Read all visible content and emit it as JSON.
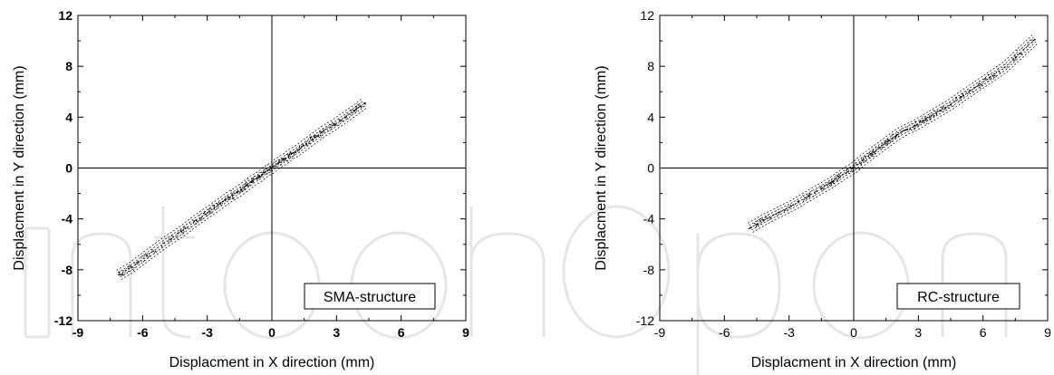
{
  "chart_data": [
    {
      "type": "scatter",
      "title": "",
      "xlabel": "Displacment in X direction (mm)",
      "ylabel": "Displacment in Y direction (mm)",
      "xlim": [
        -9,
        9
      ],
      "ylim": [
        -12,
        12
      ],
      "xticks": [
        "-9",
        "-6",
        "-3",
        "0",
        "3",
        "6",
        "9"
      ],
      "yticks": [
        "12",
        "8",
        "4",
        "0",
        "-4",
        "-8",
        "-12"
      ],
      "annotation": "SMA-structure",
      "grid": false,
      "origin_lines": true,
      "series": [
        {
          "x": [
            -7.1,
            -6.5,
            -5.8,
            -5.0,
            -4.2,
            -3.5,
            -2.9,
            -2.4,
            -2.0,
            -1.6,
            -1.2,
            -0.9,
            -0.6,
            -0.3,
            0.0,
            0.3,
            0.6,
            0.9,
            1.2,
            1.6,
            2.0,
            2.4,
            2.9,
            3.4,
            3.9,
            4.3
          ],
          "y": [
            -8.4,
            -7.8,
            -6.9,
            -5.9,
            -5.0,
            -4.1,
            -3.4,
            -2.8,
            -2.3,
            -1.9,
            -1.4,
            -1.0,
            -0.7,
            -0.3,
            0.0,
            0.4,
            0.7,
            1.1,
            1.4,
            1.9,
            2.4,
            2.9,
            3.4,
            4.0,
            4.6,
            5.1
          ]
        }
      ]
    },
    {
      "type": "scatter",
      "title": "",
      "xlabel": "Displacment in X direction (mm)",
      "ylabel": "Displacment in Y direction (mm)",
      "xlim": [
        -9,
        9
      ],
      "ylim": [
        -12,
        12
      ],
      "xticks": [
        "-9",
        "-6",
        "-3",
        "0",
        "3",
        "6",
        "9"
      ],
      "yticks": [
        "12",
        "8",
        "4",
        "0",
        "-4",
        "-8",
        "-12"
      ],
      "annotation": "RC-structure",
      "grid": false,
      "origin_lines": true,
      "series": [
        {
          "x": [
            -4.8,
            -4.2,
            -3.5,
            -2.8,
            -2.1,
            -1.5,
            -1.0,
            -0.5,
            0.0,
            0.4,
            0.8,
            1.2,
            1.6,
            2.0,
            2.4,
            2.8,
            3.2,
            3.6,
            4.0,
            4.5,
            5.0,
            5.6,
            6.3,
            7.0,
            7.7,
            8.4
          ],
          "y": [
            -4.7,
            -4.1,
            -3.5,
            -2.9,
            -2.2,
            -1.6,
            -1.1,
            -0.5,
            0.0,
            0.6,
            1.1,
            1.6,
            2.1,
            2.6,
            3.0,
            3.3,
            3.7,
            4.1,
            4.5,
            5.0,
            5.6,
            6.3,
            7.1,
            7.9,
            9.0,
            10.1
          ]
        }
      ]
    }
  ]
}
